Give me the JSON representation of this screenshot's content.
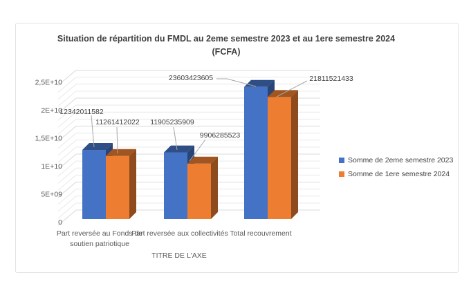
{
  "chart": {
    "title_line1": "Situation de répartition du FMDL au 2eme semestre 2023 et au 1ere semestre 2024",
    "title_line2": "(FCFA)"
  },
  "chart_data": {
    "type": "bar",
    "variant": "3d-clustered-column",
    "title": "Situation de répartition du FMDL au 2eme semestre 2023 et au 1ere semestre 2024 (FCFA)",
    "categories": [
      "Part reversée au Fonds de soutien patriotique",
      "Part reversée aux collectivités",
      "Total recouvrement"
    ],
    "series": [
      {
        "name": "Somme de 2eme semestre 2023",
        "color": "#4472C4",
        "values": [
          12342011582,
          11905235909,
          23603423605
        ]
      },
      {
        "name": "Somme de 1ere semestre 2024",
        "color": "#ED7D31",
        "values": [
          11261412022,
          9906285523,
          21811521433
        ]
      }
    ],
    "xlabel": "TITRE DE L'AXE",
    "ylabel": "",
    "ylim": [
      0,
      25000000000
    ],
    "major_unit": 5000000000,
    "minor_unit": 1250000000,
    "y_tick_labels": [
      "0",
      "5E+09",
      "1E+10",
      "1,5E+10",
      "2E+10",
      "2,5E+10"
    ],
    "legend_position": "right",
    "data_labels_visible": true,
    "gridlines": true,
    "colors": {
      "text_dark": "#3f3f3f",
      "text_axis": "#595959",
      "grid_minor": "#e9e9e9",
      "grid_major": "#d8d8d8",
      "leader_line": "#a6a6a6"
    }
  }
}
